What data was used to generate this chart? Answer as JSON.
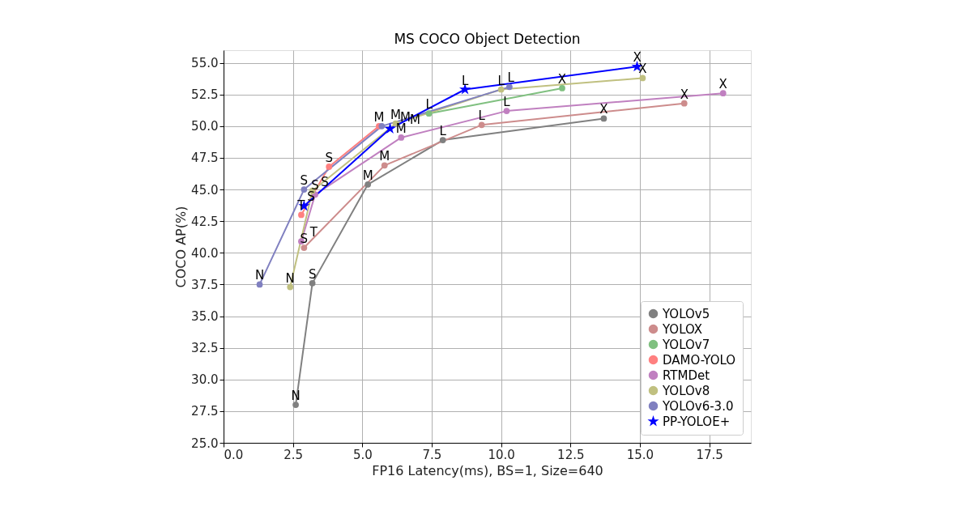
{
  "chart_data": {
    "type": "line",
    "title": "MS COCO Object Detection",
    "xlabel": "FP16 Latency(ms), BS=1, Size=640",
    "ylabel": "COCO AP(%)",
    "xlim": [
      0,
      19
    ],
    "ylim": [
      25,
      56
    ],
    "xticks": [
      {
        "value": 0,
        "label": "0.0"
      },
      {
        "value": 2.5,
        "label": "2.5"
      },
      {
        "value": 5,
        "label": "5.0"
      },
      {
        "value": 7.5,
        "label": "7.5"
      },
      {
        "value": 10,
        "label": "10.0"
      },
      {
        "value": 12.5,
        "label": "12.5"
      },
      {
        "value": 15,
        "label": "15.0"
      },
      {
        "value": 17.5,
        "label": "17.5"
      }
    ],
    "yticks": [
      {
        "value": 25,
        "label": "25.0"
      },
      {
        "value": 27.5,
        "label": "27.5"
      },
      {
        "value": 30,
        "label": "30.0"
      },
      {
        "value": 32.5,
        "label": "32.5"
      },
      {
        "value": 35,
        "label": "35.0"
      },
      {
        "value": 37.5,
        "label": "37.5"
      },
      {
        "value": 40,
        "label": "40.0"
      },
      {
        "value": 42.5,
        "label": "42.5"
      },
      {
        "value": 45,
        "label": "45.0"
      },
      {
        "value": 47.5,
        "label": "47.5"
      },
      {
        "value": 50,
        "label": "50.0"
      },
      {
        "value": 52.5,
        "label": "52.5"
      },
      {
        "value": 55,
        "label": "55.0"
      }
    ],
    "grid": true,
    "legend": "bottom right",
    "marker": "circle",
    "line_style": "solid",
    "series": [
      {
        "name": "YOLOv5",
        "color": "#808080",
        "x": [
          2.6,
          3.2,
          5.2,
          7.9,
          13.7
        ],
        "values": [
          28.0,
          37.6,
          45.4,
          48.9,
          50.6
        ]
      },
      {
        "name": "YOLOX",
        "color": "#cd8c8c",
        "x": [
          2.9,
          5.8,
          9.3,
          16.6
        ],
        "values": [
          40.4,
          46.9,
          50.1,
          51.8
        ]
      },
      {
        "name": "YOLOv7",
        "color": "#80c080",
        "x": [
          7.4,
          12.2
        ],
        "values": [
          51.0,
          53.0
        ]
      },
      {
        "name": "DAMO-YOLO",
        "color": "#ff8080",
        "x": [
          2.8,
          3.8,
          5.6
        ],
        "values": [
          43.0,
          46.8,
          50.0
        ]
      },
      {
        "name": "RTMDet",
        "color": "#c080c0",
        "x": [
          2.8,
          3.3,
          6.4,
          10.2,
          18.0
        ],
        "values": [
          40.9,
          44.6,
          49.1,
          51.2,
          52.6
        ]
      },
      {
        "name": "YOLOv8",
        "color": "#c0c080",
        "x": [
          2.4,
          3.2,
          6.2,
          10.0,
          15.1
        ],
        "values": [
          37.3,
          44.9,
          50.2,
          52.9,
          53.8
        ]
      },
      {
        "name": "YOLOv6-3.0",
        "color": "#8080c0",
        "x": [
          1.3,
          2.9,
          5.7,
          10.3
        ],
        "values": [
          37.5,
          45.0,
          50.0,
          53.1
        ]
      },
      {
        "name": "PP-YOLOE+",
        "color": "#0000ff",
        "marker": "star",
        "x": [
          2.9,
          6.0,
          8.7,
          14.9
        ],
        "values": [
          43.7,
          49.8,
          52.9,
          54.7
        ]
      }
    ],
    "annotations": [
      {
        "text": "N",
        "x": 2.6,
        "y": 28.0
      },
      {
        "text": "S",
        "x": 3.2,
        "y": 37.6
      },
      {
        "text": "M",
        "x": 5.2,
        "y": 45.4
      },
      {
        "text": "L",
        "x": 7.9,
        "y": 48.9
      },
      {
        "text": "X",
        "x": 13.7,
        "y": 50.6
      },
      {
        "text": "S",
        "x": 2.9,
        "y": 40.4
      },
      {
        "text": "M",
        "x": 5.8,
        "y": 46.9
      },
      {
        "text": "L",
        "x": 9.3,
        "y": 50.1
      },
      {
        "text": "X",
        "x": 16.6,
        "y": 51.8
      },
      {
        "text": "L",
        "x": 7.4,
        "y": 51.0
      },
      {
        "text": "X",
        "x": 12.2,
        "y": 53.0
      },
      {
        "text": "T",
        "x": 2.8,
        "y": 43.0
      },
      {
        "text": "S",
        "x": 3.8,
        "y": 46.8
      },
      {
        "text": "M",
        "x": 5.6,
        "y": 50.0
      },
      {
        "text": "T",
        "x": 2.8,
        "y": 40.9
      },
      {
        "text": "S",
        "x": 3.3,
        "y": 44.6
      },
      {
        "text": "M",
        "x": 6.4,
        "y": 49.1
      },
      {
        "text": "L",
        "x": 10.2,
        "y": 51.2
      },
      {
        "text": "X",
        "x": 18.0,
        "y": 52.6
      },
      {
        "text": "N",
        "x": 2.4,
        "y": 37.3
      },
      {
        "text": "S",
        "x": 3.2,
        "y": 44.9
      },
      {
        "text": "M",
        "x": 6.2,
        "y": 50.2
      },
      {
        "text": "L",
        "x": 10.0,
        "y": 52.9
      },
      {
        "text": "X",
        "x": 15.1,
        "y": 53.8
      },
      {
        "text": "N",
        "x": 1.3,
        "y": 37.5
      },
      {
        "text": "S",
        "x": 2.9,
        "y": 45.0
      },
      {
        "text": "M",
        "x": 5.7,
        "y": 50.0
      },
      {
        "text": "L",
        "x": 10.3,
        "y": 53.1
      },
      {
        "text": "S",
        "x": 2.9,
        "y": 43.7
      },
      {
        "text": "M",
        "x": 6.0,
        "y": 49.8
      },
      {
        "text": "L",
        "x": 8.7,
        "y": 52.9
      },
      {
        "text": "X",
        "x": 14.9,
        "y": 54.7
      }
    ]
  }
}
